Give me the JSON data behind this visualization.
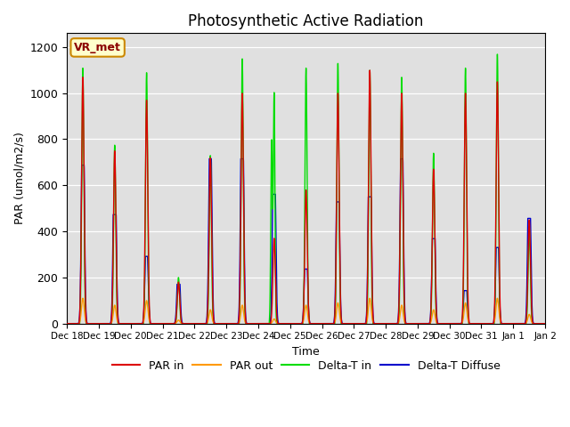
{
  "title": "Photosynthetic Active Radiation",
  "ylabel": "PAR (umol/m2/s)",
  "xlabel": "Time",
  "annotation": "VR_met",
  "ylim": [
    0,
    1260
  ],
  "yticks": [
    0,
    200,
    400,
    600,
    800,
    1000,
    1200
  ],
  "background_color": "#e0e0e0",
  "legend_labels": [
    "PAR in",
    "PAR out",
    "Delta-T in",
    "Delta-T Diffuse"
  ],
  "legend_colors": [
    "#dd0000",
    "#ff9900",
    "#00dd00",
    "#0000cc"
  ],
  "num_days": 15,
  "start_day": 18,
  "xtick_labels": [
    "Dec 18",
    "Dec 19",
    "Dec 20",
    "Dec 21",
    "Dec 22",
    "Dec 23",
    "Dec 24",
    "Dec 25",
    "Dec 26",
    "Dec 27",
    "Dec 28",
    "Dec 29",
    "Dec 30",
    "Dec 31",
    "Jan 1",
    "Jan 2"
  ]
}
